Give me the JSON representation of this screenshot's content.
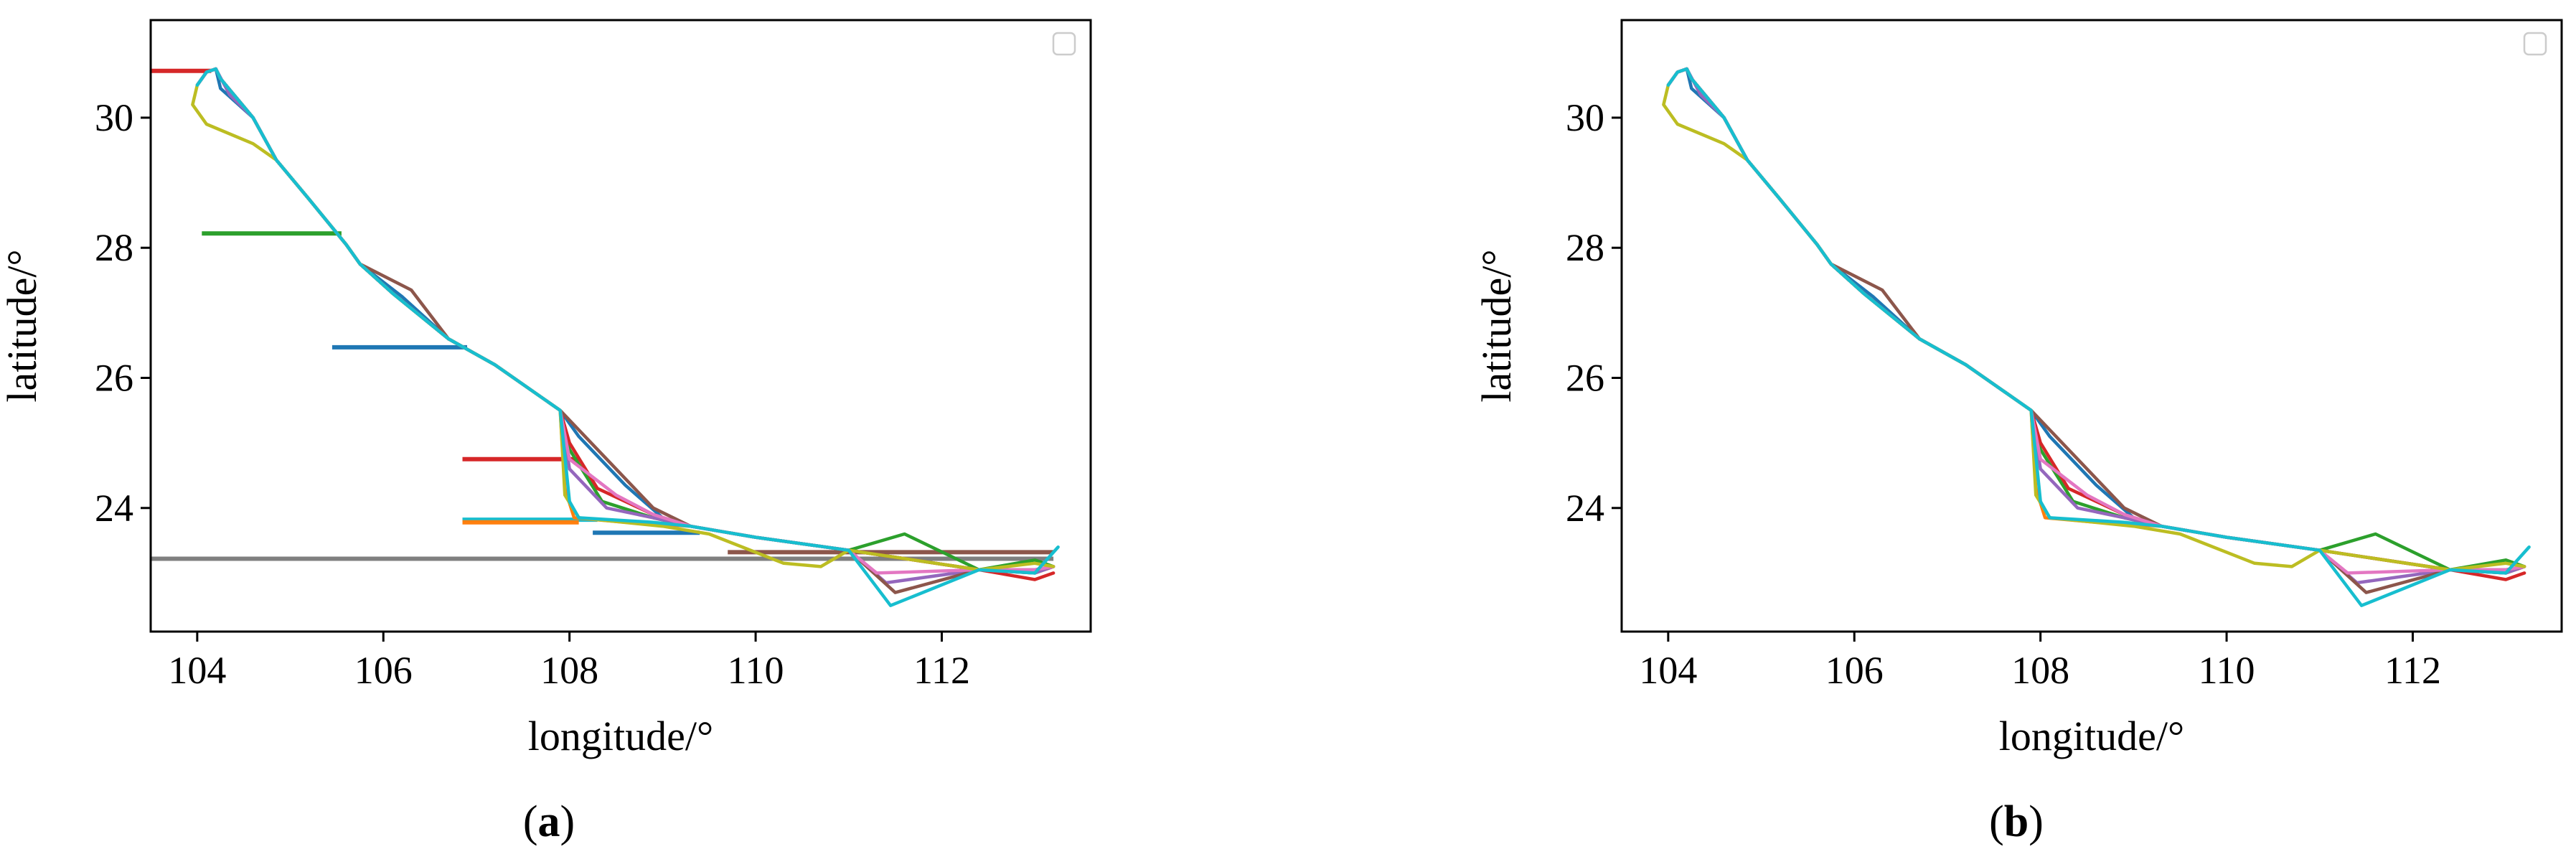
{
  "colors": {
    "palette": [
      "#1f77b4",
      "#ff7f0e",
      "#2ca02c",
      "#d62728",
      "#9467bd",
      "#8c564b",
      "#e377c2",
      "#7f7f7f",
      "#bcbd22",
      "#17becf"
    ]
  },
  "chart_data": [
    {
      "type": "line",
      "panel_label": {
        "open": "(",
        "letter": "a",
        "close": ")"
      },
      "title": "",
      "xlabel": "longitude/°",
      "ylabel": "latitude/°",
      "xlim": [
        103.5,
        113.6
      ],
      "ylim": [
        22.1,
        31.5
      ],
      "xticks": [
        104,
        106,
        108,
        110,
        112
      ],
      "yticks": [
        24,
        26,
        28,
        30
      ],
      "grid": false,
      "legend": {
        "position": "top-right",
        "entries": []
      },
      "base_route": [
        [
          104.0,
          30.5
        ],
        [
          104.1,
          30.7
        ],
        [
          104.2,
          30.75
        ],
        [
          104.25,
          30.6
        ],
        [
          104.6,
          30.0
        ],
        [
          104.85,
          29.35
        ],
        [
          105.2,
          28.75
        ],
        [
          105.6,
          28.05
        ],
        [
          105.75,
          27.75
        ],
        [
          106.1,
          27.3
        ],
        [
          106.7,
          26.6
        ],
        [
          107.2,
          26.2
        ],
        [
          107.9,
          25.5
        ],
        [
          108.0,
          25.3
        ],
        [
          108.35,
          24.6
        ],
        [
          108.9,
          23.95
        ],
        [
          109.3,
          23.72
        ],
        [
          110.0,
          23.55
        ],
        [
          111.0,
          23.35
        ],
        [
          112.4,
          23.05
        ],
        [
          113.0,
          23.0
        ],
        [
          113.2,
          23.1
        ]
      ],
      "series": [
        {
          "color_index": 0,
          "values": [
            [
              104.0,
              30.5
            ],
            [
              104.1,
              30.7
            ],
            [
              104.2,
              30.75
            ],
            [
              104.25,
              30.45
            ],
            [
              104.6,
              30.0
            ],
            [
              104.85,
              29.35
            ],
            [
              105.2,
              28.75
            ],
            [
              105.6,
              28.05
            ],
            [
              105.75,
              27.75
            ],
            [
              106.2,
              27.25
            ],
            [
              106.7,
              26.6
            ],
            [
              107.2,
              26.2
            ],
            [
              107.9,
              25.5
            ],
            [
              108.1,
              25.1
            ],
            [
              108.6,
              24.35
            ],
            [
              109.0,
              23.85
            ],
            [
              109.3,
              23.72
            ],
            [
              110.0,
              23.55
            ],
            [
              111.0,
              23.35
            ],
            [
              112.4,
              23.05
            ],
            [
              113.0,
              23.0
            ],
            [
              113.2,
              23.1
            ]
          ]
        },
        {
          "color_index": 1,
          "values": [
            [
              104.0,
              30.5
            ],
            [
              104.1,
              30.7
            ],
            [
              104.2,
              30.75
            ],
            [
              104.25,
              30.6
            ],
            [
              104.6,
              30.0
            ],
            [
              104.85,
              29.35
            ],
            [
              105.2,
              28.75
            ],
            [
              105.6,
              28.05
            ],
            [
              105.75,
              27.75
            ],
            [
              106.1,
              27.3
            ],
            [
              106.7,
              26.6
            ],
            [
              107.2,
              26.2
            ],
            [
              107.9,
              25.5
            ],
            [
              107.95,
              24.3
            ],
            [
              108.05,
              23.85
            ],
            [
              108.6,
              23.78
            ],
            [
              109.3,
              23.72
            ],
            [
              110.0,
              23.55
            ],
            [
              111.0,
              23.35
            ],
            [
              112.4,
              23.05
            ],
            [
              113.0,
              23.0
            ],
            [
              113.2,
              23.1
            ]
          ]
        },
        {
          "color_index": 2,
          "values": [
            [
              104.0,
              30.5
            ],
            [
              104.1,
              30.7
            ],
            [
              104.2,
              30.75
            ],
            [
              104.25,
              30.6
            ],
            [
              104.6,
              30.0
            ],
            [
              104.85,
              29.35
            ],
            [
              105.2,
              28.75
            ],
            [
              105.6,
              28.05
            ],
            [
              105.75,
              27.75
            ],
            [
              106.1,
              27.3
            ],
            [
              106.7,
              26.6
            ],
            [
              107.2,
              26.2
            ],
            [
              107.9,
              25.5
            ],
            [
              108.0,
              24.9
            ],
            [
              108.35,
              24.1
            ],
            [
              108.9,
              23.85
            ],
            [
              109.3,
              23.72
            ],
            [
              110.0,
              23.55
            ],
            [
              111.0,
              23.35
            ],
            [
              111.6,
              23.6
            ],
            [
              112.4,
              23.05
            ],
            [
              113.0,
              23.2
            ],
            [
              113.2,
              23.1
            ]
          ]
        },
        {
          "color_index": 3,
          "values": [
            [
              104.0,
              30.5
            ],
            [
              104.1,
              30.7
            ],
            [
              104.2,
              30.75
            ],
            [
              104.25,
              30.6
            ],
            [
              104.6,
              30.0
            ],
            [
              104.85,
              29.35
            ],
            [
              105.2,
              28.75
            ],
            [
              105.6,
              28.05
            ],
            [
              105.75,
              27.75
            ],
            [
              106.1,
              27.3
            ],
            [
              106.7,
              26.6
            ],
            [
              107.2,
              26.2
            ],
            [
              107.9,
              25.5
            ],
            [
              108.0,
              25.0
            ],
            [
              108.3,
              24.3
            ],
            [
              108.9,
              23.9
            ],
            [
              109.3,
              23.72
            ],
            [
              110.0,
              23.55
            ],
            [
              111.0,
              23.35
            ],
            [
              112.4,
              23.05
            ],
            [
              113.0,
              22.9
            ],
            [
              113.2,
              23.0
            ]
          ]
        },
        {
          "color_index": 4,
          "values": [
            [
              104.0,
              30.5
            ],
            [
              104.1,
              30.7
            ],
            [
              104.2,
              30.75
            ],
            [
              104.35,
              30.35
            ],
            [
              104.6,
              30.0
            ],
            [
              104.85,
              29.35
            ],
            [
              105.2,
              28.75
            ],
            [
              105.6,
              28.05
            ],
            [
              105.75,
              27.75
            ],
            [
              106.1,
              27.3
            ],
            [
              106.7,
              26.6
            ],
            [
              107.2,
              26.2
            ],
            [
              107.9,
              25.5
            ],
            [
              108.0,
              24.6
            ],
            [
              108.4,
              24.0
            ],
            [
              108.9,
              23.85
            ],
            [
              109.3,
              23.72
            ],
            [
              110.0,
              23.55
            ],
            [
              111.0,
              23.35
            ],
            [
              111.4,
              22.85
            ],
            [
              112.4,
              23.05
            ],
            [
              113.0,
              23.0
            ],
            [
              113.2,
              23.1
            ]
          ]
        },
        {
          "color_index": 5,
          "values": [
            [
              104.0,
              30.5
            ],
            [
              104.1,
              30.7
            ],
            [
              104.2,
              30.75
            ],
            [
              104.25,
              30.6
            ],
            [
              104.6,
              30.0
            ],
            [
              104.85,
              29.35
            ],
            [
              105.2,
              28.75
            ],
            [
              105.6,
              28.05
            ],
            [
              105.75,
              27.75
            ],
            [
              106.3,
              27.35
            ],
            [
              106.7,
              26.6
            ],
            [
              107.2,
              26.2
            ],
            [
              107.9,
              25.5
            ],
            [
              108.0,
              25.35
            ],
            [
              108.9,
              24.0
            ],
            [
              109.3,
              23.72
            ],
            [
              110.0,
              23.55
            ],
            [
              111.0,
              23.35
            ],
            [
              111.5,
              22.7
            ],
            [
              112.4,
              23.05
            ],
            [
              113.0,
              23.05
            ],
            [
              113.2,
              23.1
            ]
          ]
        },
        {
          "color_index": 6,
          "values": [
            [
              104.0,
              30.5
            ],
            [
              104.1,
              30.7
            ],
            [
              104.2,
              30.75
            ],
            [
              104.25,
              30.6
            ],
            [
              104.6,
              30.0
            ],
            [
              104.85,
              29.35
            ],
            [
              105.2,
              28.75
            ],
            [
              105.6,
              28.05
            ],
            [
              105.75,
              27.75
            ],
            [
              106.1,
              27.3
            ],
            [
              106.7,
              26.6
            ],
            [
              107.2,
              26.2
            ],
            [
              107.9,
              25.5
            ],
            [
              108.0,
              24.75
            ],
            [
              108.5,
              24.2
            ],
            [
              108.9,
              23.9
            ],
            [
              109.3,
              23.72
            ],
            [
              110.0,
              23.55
            ],
            [
              111.0,
              23.35
            ],
            [
              111.3,
              23.0
            ],
            [
              112.4,
              23.05
            ],
            [
              113.0,
              23.05
            ],
            [
              113.2,
              23.1
            ]
          ]
        },
        {
          "color_index": 8,
          "values": [
            [
              104.0,
              30.5
            ],
            [
              103.95,
              30.2
            ],
            [
              104.1,
              29.9
            ],
            [
              104.6,
              29.6
            ],
            [
              104.85,
              29.35
            ],
            [
              105.2,
              28.75
            ],
            [
              105.6,
              28.05
            ],
            [
              105.75,
              27.75
            ],
            [
              106.1,
              27.3
            ],
            [
              106.7,
              26.6
            ],
            [
              107.2,
              26.2
            ],
            [
              107.9,
              25.5
            ],
            [
              107.95,
              24.2
            ],
            [
              108.1,
              23.85
            ],
            [
              109.0,
              23.72
            ],
            [
              109.5,
              23.6
            ],
            [
              110.3,
              23.15
            ],
            [
              110.7,
              23.1
            ],
            [
              111.0,
              23.35
            ],
            [
              112.4,
              23.05
            ],
            [
              113.0,
              23.15
            ],
            [
              113.2,
              23.1
            ]
          ]
        },
        {
          "color_index": 9,
          "values": [
            [
              104.0,
              30.5
            ],
            [
              104.1,
              30.7
            ],
            [
              104.2,
              30.75
            ],
            [
              104.25,
              30.6
            ],
            [
              104.6,
              30.0
            ],
            [
              104.85,
              29.35
            ],
            [
              105.2,
              28.75
            ],
            [
              105.6,
              28.05
            ],
            [
              105.75,
              27.75
            ],
            [
              106.1,
              27.3
            ],
            [
              106.7,
              26.6
            ],
            [
              107.2,
              26.2
            ],
            [
              107.9,
              25.5
            ],
            [
              108.0,
              24.1
            ],
            [
              108.1,
              23.85
            ],
            [
              108.9,
              23.78
            ],
            [
              109.3,
              23.72
            ],
            [
              110.0,
              23.55
            ],
            [
              111.0,
              23.35
            ],
            [
              111.45,
              22.5
            ],
            [
              112.4,
              23.05
            ],
            [
              113.0,
              23.0
            ],
            [
              113.25,
              23.4
            ]
          ]
        }
      ],
      "artifact_lines": [
        {
          "color_index": 3,
          "values": [
            [
              103.5,
              30.72
            ],
            [
              104.15,
              30.72
            ]
          ]
        },
        {
          "color_index": 2,
          "values": [
            [
              104.05,
              28.22
            ],
            [
              105.55,
              28.22
            ]
          ]
        },
        {
          "color_index": 0,
          "values": [
            [
              105.45,
              26.47
            ],
            [
              106.9,
              26.47
            ]
          ]
        },
        {
          "color_index": 3,
          "values": [
            [
              106.85,
              24.75
            ],
            [
              108.1,
              24.75
            ]
          ]
        },
        {
          "color_index": 9,
          "values": [
            [
              106.85,
              23.82
            ],
            [
              108.3,
              23.82
            ]
          ]
        },
        {
          "color_index": 1,
          "values": [
            [
              106.85,
              23.78
            ],
            [
              108.1,
              23.78
            ]
          ]
        },
        {
          "color_index": 0,
          "values": [
            [
              108.25,
              23.62
            ],
            [
              109.4,
              23.62
            ]
          ]
        },
        {
          "color_index": 5,
          "values": [
            [
              109.7,
              23.32
            ],
            [
              113.2,
              23.32
            ]
          ]
        },
        {
          "color_index": 7,
          "values": [
            [
              103.5,
              23.22
            ],
            [
              113.2,
              23.22
            ]
          ]
        }
      ]
    },
    {
      "type": "line",
      "panel_label": {
        "open": "(",
        "letter": "b",
        "close": ")"
      },
      "title": "",
      "xlabel": "longitude/°",
      "ylabel": "latitude/°",
      "xlim": [
        103.5,
        113.6
      ],
      "ylim": [
        22.1,
        31.5
      ],
      "xticks": [
        104,
        106,
        108,
        110,
        112
      ],
      "yticks": [
        24,
        26,
        28,
        30
      ],
      "grid": false,
      "legend": {
        "position": "top-right",
        "entries": []
      },
      "series_same_as_panel_a": true,
      "artifact_lines": []
    }
  ]
}
